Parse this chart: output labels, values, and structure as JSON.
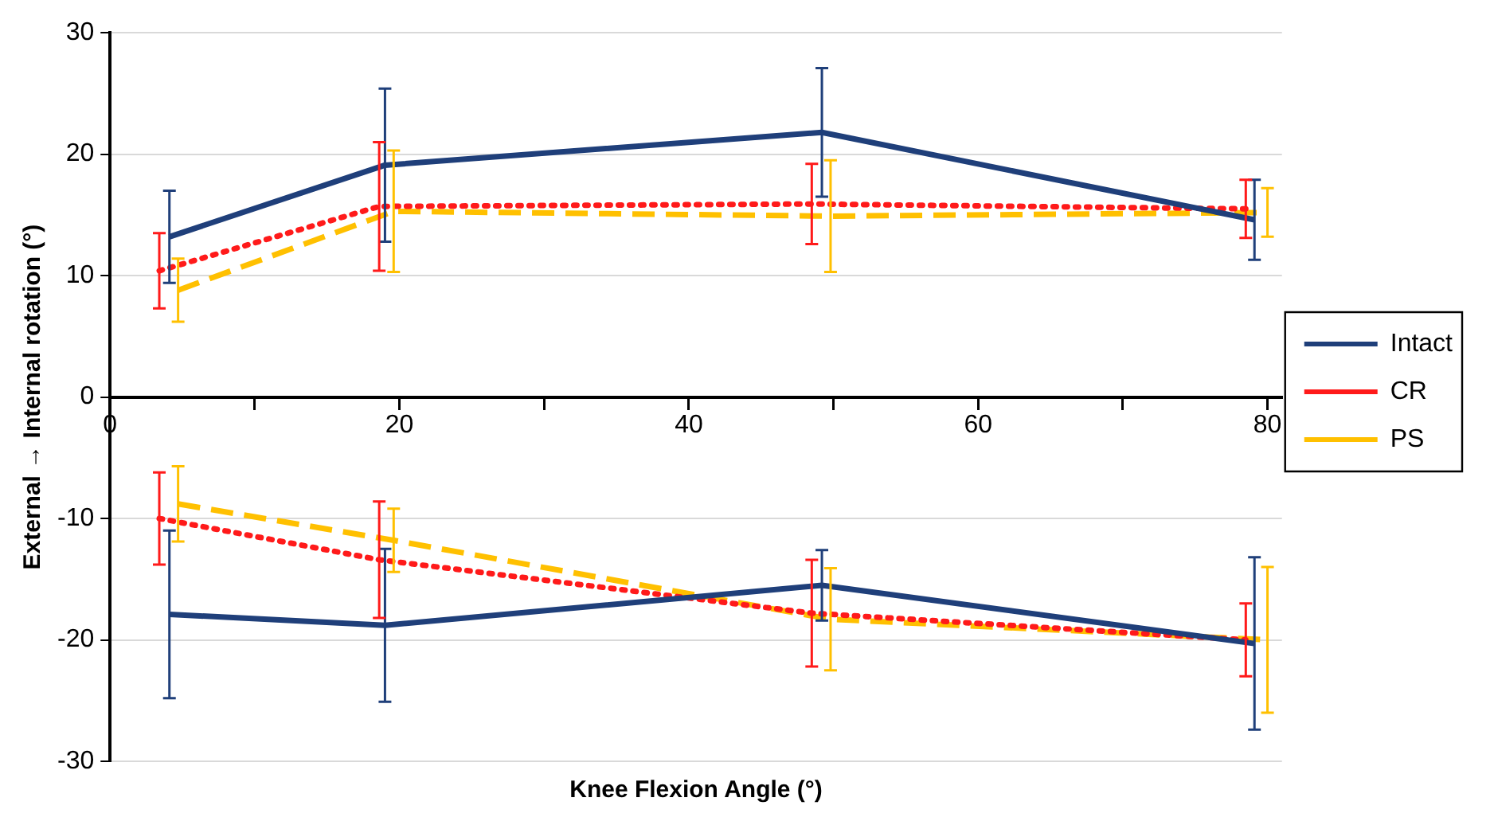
{
  "chart_data": {
    "type": "line",
    "xlabel": "Knee Flexion Angle (°)",
    "ylabel": "External → Internal rotation (°)",
    "xlim": [
      0,
      81
    ],
    "xticks": [
      0,
      {
        "value": 10,
        "label": null
      },
      20,
      {
        "value": 30,
        "label": null
      },
      40,
      {
        "value": 50,
        "label": null
      },
      60,
      {
        "value": 70,
        "label": null
      },
      80
    ],
    "ylim": [
      -30,
      30
    ],
    "yticks": [
      -30,
      -20,
      -10,
      0,
      10,
      20,
      30
    ],
    "grid": "y",
    "legend": "right",
    "marker": "none",
    "series": [
      {
        "name": "Intact",
        "color": "#1f3f7a",
        "line_style": "solid",
        "x": [
          4.1,
          19.0,
          49.2,
          79.1
        ],
        "values": [
          13.2,
          19.1,
          21.8,
          14.6
        ],
        "errors": [
          3.8,
          6.3,
          5.3,
          3.3
        ]
      },
      {
        "name": "CR",
        "color": "#ff1a1a",
        "line_style": "dotted",
        "x": [
          3.4,
          18.6,
          48.5,
          78.5
        ],
        "values": [
          10.4,
          15.7,
          15.9,
          15.5
        ],
        "errors": [
          3.1,
          5.3,
          3.3,
          2.4
        ]
      },
      {
        "name": "PS",
        "color": "#ffc000",
        "line_style": "dashed",
        "x": [
          4.7,
          19.6,
          49.8,
          80.0
        ],
        "values": [
          8.8,
          15.3,
          14.9,
          15.2
        ],
        "errors": [
          2.6,
          5.0,
          4.6,
          2.0
        ]
      },
      {
        "color": "#1f3f7a",
        "line_style": "solid",
        "x": [
          4.1,
          19.0,
          49.2,
          79.1
        ],
        "values": [
          -17.9,
          -18.8,
          -15.5,
          -20.3
        ],
        "errors": [
          6.9,
          6.3,
          2.9,
          7.1
        ]
      },
      {
        "color": "#ff1a1a",
        "line_style": "dotted",
        "x": [
          3.4,
          18.6,
          48.5,
          78.5
        ],
        "values": [
          -10.0,
          -13.4,
          -17.8,
          -20.0
        ],
        "errors": [
          3.8,
          4.8,
          4.4,
          3.0
        ]
      },
      {
        "color": "#ffc000",
        "line_style": "dashed",
        "x": [
          4.7,
          19.6,
          49.8,
          80.0
        ],
        "values": [
          -8.8,
          -11.8,
          -18.3,
          -20.0
        ],
        "errors": [
          3.1,
          2.6,
          4.2,
          6.0
        ]
      }
    ]
  }
}
